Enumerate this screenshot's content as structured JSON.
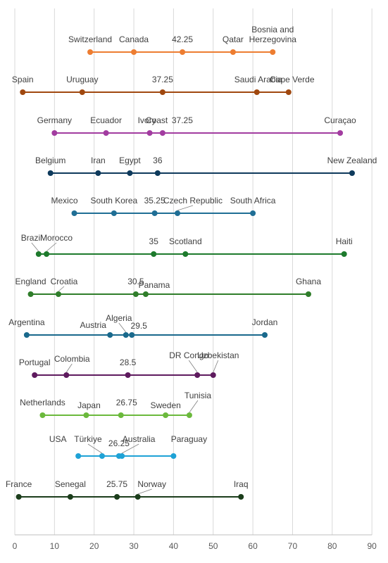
{
  "chart_data": {
    "type": "line",
    "xlim": [
      0,
      90
    ],
    "x_ticks": [
      "0",
      "10",
      "20",
      "30",
      "40",
      "50",
      "60",
      "70",
      "80",
      "90"
    ],
    "grid": true,
    "series": [
      {
        "color": "#ed7d31",
        "points": [
          {
            "label": "Switzerland",
            "x": 19
          },
          {
            "label": "Canada",
            "x": 30
          },
          {
            "label": "42.25",
            "x": 42.25
          },
          {
            "label": "Qatar",
            "x": 55
          },
          {
            "label": "Bosnia and",
            "label2": "Herzegovina",
            "x": 65
          }
        ]
      },
      {
        "color": "#a0480f",
        "points": [
          {
            "label": "Spain",
            "x": 2
          },
          {
            "label": "Uruguay",
            "x": 17
          },
          {
            "label": "37.25",
            "x": 37.25
          },
          {
            "label": "Saudi Arabia",
            "x": 61
          },
          {
            "label": "Cape Verde",
            "x": 69
          }
        ]
      },
      {
        "color": "#a23ca0",
        "points": [
          {
            "label": "Germany",
            "x": 10
          },
          {
            "label": "Ecuador",
            "x": 23
          },
          {
            "label": "Ivory",
            "x": 34
          },
          {
            "label": "Coast",
            "x": 34
          },
          {
            "label": "37.25",
            "x": 37.25
          },
          {
            "label": "Curaçao",
            "x": 82
          }
        ]
      },
      {
        "color": "#0e3a5c",
        "points": [
          {
            "label": "Belgium",
            "x": 9
          },
          {
            "label": "Iran",
            "x": 21
          },
          {
            "label": "Egypt",
            "x": 29
          },
          {
            "label": "36",
            "x": 36
          },
          {
            "label": "New Zealand",
            "x": 85
          }
        ]
      },
      {
        "color": "#1f6e95",
        "points": [
          {
            "label": "Mexico",
            "x": 15
          },
          {
            "label": "South Korea",
            "x": 25
          },
          {
            "label": "35.25",
            "x": 35.25
          },
          {
            "label": "Czech Republic",
            "x": 41
          },
          {
            "label": "South Africa",
            "x": 60
          }
        ]
      },
      {
        "color": "#1d7a2c",
        "points": [
          {
            "label": "Brazil",
            "x": 6
          },
          {
            "label": "Morocco",
            "x": 8
          },
          {
            "label": "35",
            "x": 35
          },
          {
            "label": "Scotland",
            "x": 43
          },
          {
            "label": "Haiti",
            "x": 83
          }
        ]
      },
      {
        "color": "#2f7d2a",
        "points": [
          {
            "label": "England",
            "x": 4
          },
          {
            "label": "Croatia",
            "x": 11
          },
          {
            "label": "30.5",
            "x": 30.5
          },
          {
            "label": "Panama",
            "x": 33
          },
          {
            "label": "Ghana",
            "x": 74
          }
        ]
      },
      {
        "color": "#19698c",
        "points": [
          {
            "label": "Argentina",
            "x": 3
          },
          {
            "label": "Austria",
            "x": 24
          },
          {
            "label": "Algeria",
            "x": 28
          },
          {
            "label": "29.5",
            "x": 29.5
          },
          {
            "label": "Jordan",
            "x": 63
          }
        ]
      },
      {
        "color": "#5e1a5e",
        "points": [
          {
            "label": "Portugal",
            "x": 5
          },
          {
            "label": "Colombia",
            "x": 13
          },
          {
            "label": "28.5",
            "x": 28.5
          },
          {
            "label": "DR Congo",
            "x": 46
          },
          {
            "label": "Uzbekistan",
            "x": 50
          }
        ]
      },
      {
        "color": "#6bb93c",
        "points": [
          {
            "label": "Netherlands",
            "x": 7
          },
          {
            "label": "Japan",
            "x": 18
          },
          {
            "label": "26.75",
            "x": 26.75
          },
          {
            "label": "Sweden",
            "x": 38
          },
          {
            "label": "Tunisia",
            "x": 44
          }
        ]
      },
      {
        "color": "#1ea2d6",
        "points": [
          {
            "label": "USA",
            "x": 16
          },
          {
            "label": "Türkiye",
            "x": 22
          },
          {
            "label": "26.25",
            "x": 26.25
          },
          {
            "label": "Australia",
            "x": 27
          },
          {
            "label": "Paraguay",
            "x": 40
          }
        ]
      },
      {
        "color": "#1b3d1b",
        "points": [
          {
            "label": "France",
            "x": 1
          },
          {
            "label": "Senegal",
            "x": 14
          },
          {
            "label": "25.75",
            "x": 25.75
          },
          {
            "label": "Norway",
            "x": 31
          },
          {
            "label": "Iraq",
            "x": 57
          }
        ]
      }
    ]
  }
}
